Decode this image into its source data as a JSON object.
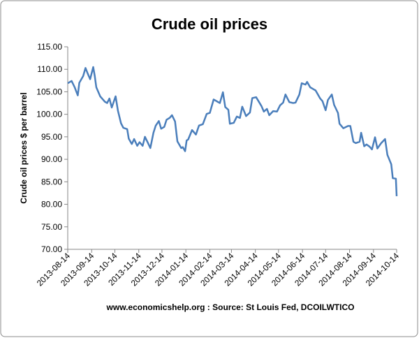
{
  "chart_data": {
    "type": "line",
    "title": "Crude oil prices",
    "y_label": "Crude oil prices $ per barrel",
    "source": "www.economicshelp.org : Source: St Louis Fed, DCOILWTICO",
    "color": "#4a7ebb",
    "x": [
      "2013-08-14",
      "2013-08-19",
      "2013-08-23",
      "2013-08-27",
      "2013-08-29",
      "2013-09-03",
      "2013-09-06",
      "2013-09-09",
      "2013-09-12",
      "2013-09-16",
      "2013-09-18",
      "2013-09-20",
      "2013-09-25",
      "2013-10-01",
      "2013-10-04",
      "2013-10-07",
      "2013-10-10",
      "2013-10-15",
      "2013-10-18",
      "2013-10-22",
      "2013-10-25",
      "2013-10-30",
      "2013-11-01",
      "2013-11-05",
      "2013-11-08",
      "2013-11-12",
      "2013-11-15",
      "2013-11-19",
      "2013-11-22",
      "2013-11-26",
      "2013-11-29",
      "2013-12-03",
      "2013-12-06",
      "2013-12-10",
      "2013-12-13",
      "2013-12-17",
      "2013-12-20",
      "2013-12-24",
      "2013-12-27",
      "2013-12-31",
      "2014-01-03",
      "2014-01-08",
      "2014-01-10",
      "2014-01-13",
      "2014-01-15",
      "2014-01-17",
      "2014-01-22",
      "2014-01-27",
      "2014-01-31",
      "2014-02-05",
      "2014-02-10",
      "2014-02-14",
      "2014-02-19",
      "2014-02-24",
      "2014-02-27",
      "2014-03-03",
      "2014-03-06",
      "2014-03-10",
      "2014-03-12",
      "2014-03-17",
      "2014-03-21",
      "2014-03-25",
      "2014-03-28",
      "2014-04-02",
      "2014-04-07",
      "2014-04-10",
      "2014-04-15",
      "2014-04-22",
      "2014-04-25",
      "2014-04-29",
      "2014-05-02",
      "2014-05-07",
      "2014-05-12",
      "2014-05-16",
      "2014-05-20",
      "2014-05-23",
      "2014-05-28",
      "2014-06-02",
      "2014-06-05",
      "2014-06-10",
      "2014-06-13",
      "2014-06-18",
      "2014-06-20",
      "2014-06-24",
      "2014-06-27",
      "2014-07-01",
      "2014-07-07",
      "2014-07-10",
      "2014-07-14",
      "2014-07-17",
      "2014-07-22",
      "2014-07-25",
      "2014-07-30",
      "2014-08-01",
      "2014-08-06",
      "2014-08-12",
      "2014-08-15",
      "2014-08-19",
      "2014-08-22",
      "2014-08-27",
      "2014-08-29",
      "2014-09-02",
      "2014-09-05",
      "2014-09-09",
      "2014-09-12",
      "2014-09-16",
      "2014-09-19",
      "2014-09-24",
      "2014-09-29",
      "2014-10-02",
      "2014-10-07",
      "2014-10-09",
      "2014-10-13",
      "2014-10-14"
    ],
    "values": [
      106.9,
      107.4,
      106,
      104.2,
      107,
      108.5,
      110.3,
      109,
      107.8,
      110.5,
      108.5,
      106,
      104,
      102.8,
      102.5,
      103.5,
      101.5,
      104,
      100.8,
      98,
      97,
      96.7,
      94.6,
      93.4,
      94.5,
      93,
      93.8,
      93,
      95,
      93.6,
      92.5,
      95.9,
      97.5,
      98.5,
      96.8,
      97.2,
      98.8,
      99.2,
      99.8,
      98.4,
      94,
      92.5,
      92.7,
      91.8,
      94.2,
      94.4,
      96.5,
      95.5,
      97.5,
      97.8,
      100.1,
      100.3,
      103.3,
      102.8,
      102.5,
      104.9,
      101.6,
      101,
      97.9,
      98.1,
      99.5,
      99.2,
      101.7,
      99.6,
      100.4,
      103.6,
      103.8,
      101.8,
      100.6,
      101.2,
      99.8,
      100.7,
      100.6,
      102,
      102.6,
      104.4,
      102.7,
      102.5,
      102.6,
      104.4,
      106.9,
      106.6,
      107.2,
      106,
      105.7,
      105.3,
      103.5,
      102.9,
      100.9,
      103.2,
      104.4,
      102.1,
      100.3,
      97.9,
      96.9,
      97.4,
      97.4,
      93.9,
      93.6,
      93.9,
      95.9,
      92.9,
      93.3,
      92.8,
      92.2,
      94.9,
      92.4,
      93.6,
      94.5,
      91,
      88.9,
      85.8,
      85.7,
      81.8
    ],
    "xlim": [
      "2013-08-14",
      "2014-10-14"
    ],
    "xticks": [
      "2013-08-14",
      "2013-09-14",
      "2013-10-14",
      "2013-11-14",
      "2013-12-14",
      "2014-01-14",
      "2014-02-14",
      "2014-03-14",
      "2014-04-14",
      "2014-05-14",
      "2014-06-14",
      "2014-07-14",
      "2014-08-14",
      "2014-09-14",
      "2014-10-14"
    ],
    "ylim": [
      70,
      115
    ],
    "yticks": [
      {
        "value": 70,
        "label": "70.00"
      },
      {
        "value": 75,
        "label": "75.00"
      },
      {
        "value": 80,
        "label": "80.00"
      },
      {
        "value": 85,
        "label": "85.00"
      },
      {
        "value": 90,
        "label": "90.00"
      },
      {
        "value": 95,
        "label": "95.00"
      },
      {
        "value": 100,
        "label": "100.00"
      },
      {
        "value": 105,
        "label": "105.00"
      },
      {
        "value": 110,
        "label": "110.00"
      },
      {
        "value": 115,
        "label": "115.00"
      }
    ],
    "grid": false
  }
}
